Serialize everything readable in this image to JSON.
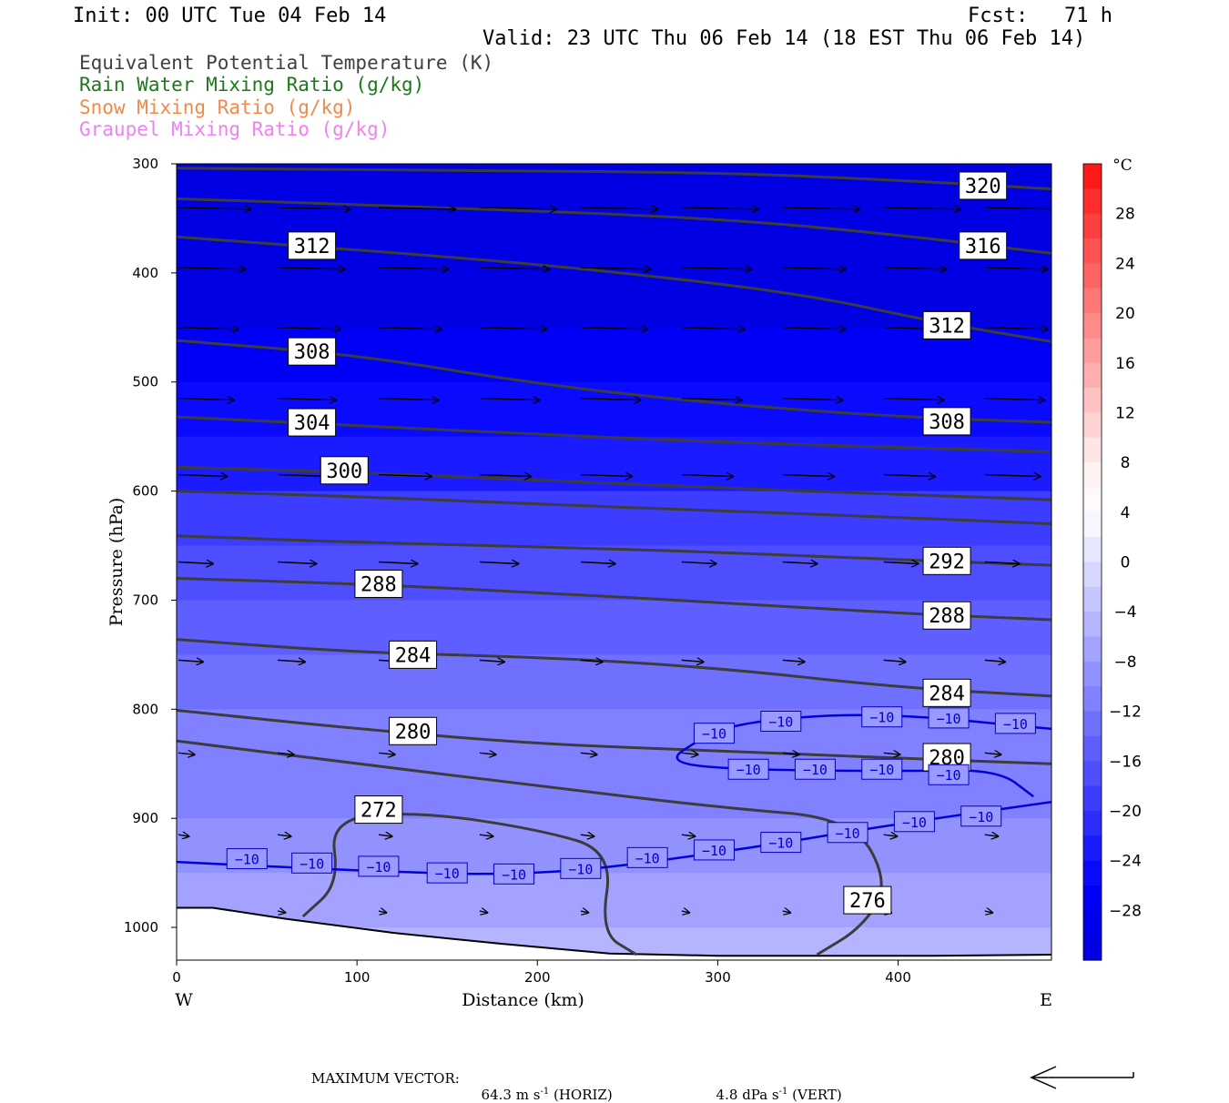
{
  "header": {
    "init": "Init: 00 UTC Tue 04 Feb 14",
    "fcst": "Fcst:   71 h",
    "valid": "Valid: 23 UTC Thu 06 Feb 14 (18 EST Thu 06 Feb 14)"
  },
  "legend": [
    {
      "label": "Equivalent Potential Temperature (K)",
      "color": "#404040"
    },
    {
      "label": "Rain Water Mixing Ratio (g/kg)",
      "color": "#1a7a1a"
    },
    {
      "label": "Snow Mixing Ratio (g/kg)",
      "color": "#f08a4a"
    },
    {
      "label": "Graupel Mixing Ratio (g/kg)",
      "color": "#ee82ee"
    }
  ],
  "footer": {
    "label": "MAXIMUM VECTOR:",
    "horiz_value": "64.3",
    "horiz_unit": "m s",
    "horiz_exp": "-1",
    "horiz_tag": "(HORIZ)",
    "vert_value": "4.8",
    "vert_unit": "dPa s",
    "vert_exp": "-1",
    "vert_tag": "(VERT)"
  },
  "chart_data": {
    "type": "cross-section",
    "xlabel": "Distance (km)",
    "ylabel": "Pressure (hPa)",
    "xlim": [
      0,
      485
    ],
    "ylim": [
      1030,
      300
    ],
    "y_log_scale": false,
    "x_ticks": [
      0,
      100,
      200,
      300,
      400
    ],
    "y_ticks": [
      300,
      400,
      500,
      600,
      700,
      800,
      900,
      1000
    ],
    "x_end_labels": {
      "left": "W",
      "right": "E"
    },
    "colorbar": {
      "unit": "°C",
      "tick_labels": [
        "28",
        "24",
        "20",
        "16",
        "12",
        "8",
        "4",
        "0",
        "−4",
        "−8",
        "−12",
        "−16",
        "−20",
        "−24",
        "−28"
      ],
      "levels": [
        32,
        30,
        28,
        26,
        24,
        22,
        20,
        18,
        16,
        14,
        12,
        10,
        8,
        6,
        4,
        2,
        0,
        -2,
        -4,
        -6,
        -8,
        -10,
        -12,
        -14,
        -16,
        -18,
        -20,
        -22,
        -24,
        -26,
        -28,
        -30,
        -32
      ],
      "colors": [
        "#ff1a1a",
        "#ff2d2d",
        "#ff4040",
        "#ff5353",
        "#ff6565",
        "#ff7878",
        "#ff8a8a",
        "#ff9c9c",
        "#ffafaf",
        "#ffc1c1",
        "#ffd3d3",
        "#ffe5e5",
        "#fff2f2",
        "#fffafa",
        "#f6f6ff",
        "#e7e7ff",
        "#d6d6ff",
        "#c5c5ff",
        "#b4b4ff",
        "#a3a3ff",
        "#9292ff",
        "#8181ff",
        "#7070ff",
        "#5f5fff",
        "#4e4eff",
        "#3d3dff",
        "#2c2cff",
        "#1b1bff",
        "#0a0aff",
        "#0000f6",
        "#0000ec",
        "#0000e2"
      ]
    },
    "temperature_shading_bands": [
      {
        "p": 300,
        "t": -31
      },
      {
        "p": 400,
        "t": -30
      },
      {
        "p": 450,
        "t": -27
      },
      {
        "p": 500,
        "t": -24
      },
      {
        "p": 550,
        "t": -22
      },
      {
        "p": 600,
        "t": -19
      },
      {
        "p": 650,
        "t": -17
      },
      {
        "p": 700,
        "t": -15
      },
      {
        "p": 750,
        "t": -13
      },
      {
        "p": 800,
        "t": -11
      },
      {
        "p": 850,
        "t": -10
      },
      {
        "p": 900,
        "t": -9
      },
      {
        "p": 950,
        "t": -7
      },
      {
        "p": 1000,
        "t": -5
      },
      {
        "p": 1025,
        "t": -3
      }
    ],
    "theta_e_contours": [
      {
        "level": 320,
        "x": [
          0,
          150,
          300,
          400,
          485
        ],
        "p": [
          304,
          306,
          308,
          315,
          323
        ],
        "labels": [
          {
            "x": 447,
            "p": 320
          }
        ]
      },
      {
        "level": 316,
        "x": [
          0,
          150,
          300,
          400,
          485
        ],
        "p": [
          332,
          340,
          350,
          365,
          382
        ],
        "labels": [
          {
            "x": 447,
            "p": 375
          }
        ]
      },
      {
        "level": 312,
        "x": [
          0,
          150,
          250,
          350,
          420,
          485
        ],
        "p": [
          367,
          385,
          400,
          420,
          445,
          463
        ],
        "labels": [
          {
            "x": 75,
            "p": 375
          },
          {
            "x": 427,
            "p": 448
          }
        ]
      },
      {
        "level": 308,
        "x": [
          0,
          100,
          200,
          300,
          400,
          485
        ],
        "p": [
          462,
          475,
          502,
          520,
          532,
          537
        ],
        "labels": [
          {
            "x": 75,
            "p": 472
          },
          {
            "x": 427,
            "p": 536
          }
        ]
      },
      {
        "level": 304,
        "x": [
          0,
          100,
          200,
          300,
          400,
          485
        ],
        "p": [
          532,
          540,
          548,
          555,
          560,
          564
        ],
        "labels": [
          {
            "x": 75,
            "p": 537
          }
        ]
      },
      {
        "level": 300,
        "x": [
          0,
          100,
          200,
          300,
          400,
          485
        ],
        "p": [
          578,
          583,
          590,
          597,
          603,
          608
        ],
        "labels": [
          {
            "x": 93,
            "p": 581
          }
        ]
      },
      {
        "level": 296,
        "x": [
          0,
          100,
          200,
          300,
          400,
          485
        ],
        "p": [
          600,
          605,
          612,
          618,
          624,
          630
        ],
        "labels": []
      },
      {
        "level": 292,
        "x": [
          0,
          100,
          200,
          300,
          400,
          485
        ],
        "p": [
          641,
          647,
          651,
          656,
          663,
          668
        ],
        "labels": [
          {
            "x": 427,
            "p": 664
          }
        ]
      },
      {
        "level": 288,
        "x": [
          0,
          100,
          200,
          300,
          400,
          485
        ],
        "p": [
          680,
          685,
          693,
          702,
          712,
          718
        ],
        "labels": [
          {
            "x": 112,
            "p": 685
          },
          {
            "x": 427,
            "p": 714
          }
        ]
      },
      {
        "level": 284,
        "x": [
          0,
          100,
          200,
          300,
          400,
          485
        ],
        "p": [
          736,
          748,
          752,
          762,
          780,
          788
        ],
        "labels": [
          {
            "x": 131,
            "p": 750
          },
          {
            "x": 427,
            "p": 785
          }
        ]
      },
      {
        "level": 280,
        "x": [
          0,
          100,
          200,
          300,
          400,
          485
        ],
        "p": [
          801,
          818,
          832,
          838,
          845,
          850
        ],
        "labels": [
          {
            "x": 131,
            "p": 820
          },
          {
            "x": 427,
            "p": 844
          }
        ]
      },
      {
        "level": 276,
        "x": [
          0,
          100,
          200,
          300,
          375,
          395,
          380,
          355
        ],
        "p": [
          829,
          850,
          870,
          890,
          900,
          960,
          1000,
          1025
        ],
        "labels": [
          {
            "x": 383,
            "p": 975
          }
        ]
      },
      {
        "level": 272,
        "x": [
          70,
          90,
          85,
          135,
          200,
          242,
          235,
          255
        ],
        "p": [
          990,
          960,
          900,
          894,
          910,
          930,
          1005,
          1025
        ],
        "labels": [
          {
            "x": 112,
            "p": 892
          }
        ]
      }
    ],
    "isotherm_minus10_lines": [
      {
        "x": [
          0,
          100,
          200,
          300,
          400,
          485
        ],
        "p": [
          940,
          948,
          953,
          932,
          905,
          885
        ]
      },
      {
        "x": [
          290,
          320,
          390,
          485
        ],
        "p": [
          825,
          810,
          803,
          818
        ]
      },
      {
        "x": [
          290,
          272,
          300,
          400,
          455,
          475
        ],
        "p": [
          828,
          847,
          855,
          857,
          855,
          880
        ]
      }
    ],
    "isotherm_minus10_labels": [
      {
        "x": 39,
        "p": 937
      },
      {
        "x": 75,
        "p": 941
      },
      {
        "x": 112,
        "p": 944
      },
      {
        "x": 150,
        "p": 950
      },
      {
        "x": 187,
        "p": 951
      },
      {
        "x": 224,
        "p": 946
      },
      {
        "x": 261,
        "p": 936
      },
      {
        "x": 298,
        "p": 929
      },
      {
        "x": 335,
        "p": 922
      },
      {
        "x": 372,
        "p": 913
      },
      {
        "x": 409,
        "p": 903
      },
      {
        "x": 446,
        "p": 898
      },
      {
        "x": 298,
        "p": 822
      },
      {
        "x": 335,
        "p": 811
      },
      {
        "x": 391,
        "p": 807
      },
      {
        "x": 428,
        "p": 808
      },
      {
        "x": 465,
        "p": 813
      },
      {
        "x": 317,
        "p": 855
      },
      {
        "x": 354,
        "p": 855
      },
      {
        "x": 391,
        "p": 855
      },
      {
        "x": 428,
        "p": 860
      }
    ],
    "wind_vector_rows": [
      {
        "p": 340,
        "x": [
          0,
          55,
          111,
          167,
          223,
          279,
          335,
          391,
          447
        ],
        "len": [
          52,
          52,
          55,
          55,
          55,
          55,
          55,
          55,
          55
        ]
      },
      {
        "p": 395,
        "x": [
          0,
          55,
          111,
          167,
          223,
          279,
          335,
          391,
          447
        ],
        "len": [
          48,
          48,
          50,
          50,
          50,
          50,
          45,
          45,
          45
        ]
      },
      {
        "p": 450,
        "x": [
          0,
          55,
          111,
          167,
          223,
          279,
          335,
          391,
          447
        ],
        "len": [
          43,
          45,
          45,
          48,
          48,
          45,
          45,
          45,
          45
        ]
      },
      {
        "p": 515,
        "x": [
          0,
          55,
          111,
          167,
          223,
          279,
          335,
          391,
          447
        ],
        "len": [
          40,
          42,
          43,
          43,
          43,
          43,
          43,
          43,
          43
        ]
      },
      {
        "p": 585,
        "x": [
          0,
          55,
          111,
          167,
          223,
          279,
          335,
          391,
          447
        ],
        "len": [
          35,
          38,
          38,
          37,
          37,
          37,
          37,
          37,
          40
        ]
      },
      {
        "p": 665,
        "x": [
          0,
          55,
          111,
          167,
          223,
          279,
          335,
          391,
          447
        ],
        "len": [
          25,
          28,
          28,
          28,
          25,
          25,
          25,
          25,
          25
        ]
      },
      {
        "p": 755,
        "x": [
          0,
          55,
          111,
          167,
          223,
          279,
          335,
          391,
          447
        ],
        "len": [
          18,
          20,
          18,
          18,
          16,
          16,
          16,
          16,
          15
        ]
      },
      {
        "p": 840,
        "x": [
          0,
          55,
          111,
          167,
          223,
          279,
          335,
          391,
          447
        ],
        "len": [
          12,
          12,
          12,
          12,
          12,
          12,
          12,
          12,
          12
        ]
      },
      {
        "p": 915,
        "x": [
          0,
          55,
          111,
          167,
          223,
          279,
          335,
          391,
          447
        ],
        "len": [
          8,
          10,
          10,
          10,
          10,
          10,
          10,
          10,
          10
        ]
      },
      {
        "p": 985,
        "x": [
          55,
          111,
          167,
          223,
          279,
          335,
          391,
          447
        ],
        "len": [
          6,
          6,
          6,
          6,
          6,
          6,
          6,
          6
        ]
      }
    ],
    "terrain": {
      "x": [
        0,
        20,
        60,
        120,
        180,
        240,
        300,
        360,
        420,
        485
      ],
      "p": [
        982,
        982,
        992,
        1005,
        1015,
        1024,
        1026,
        1026,
        1026,
        1025
      ]
    }
  }
}
